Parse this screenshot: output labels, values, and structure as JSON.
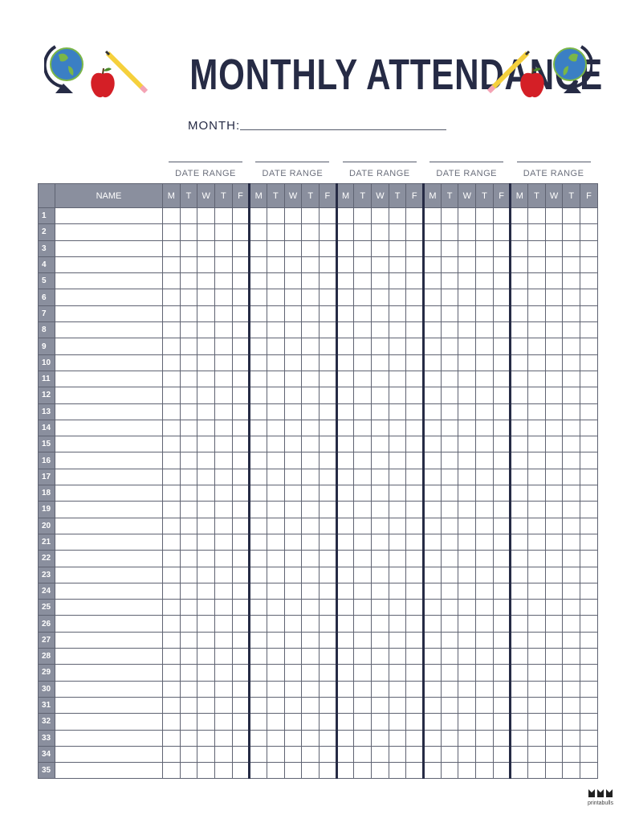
{
  "header": {
    "title": "MONTHLY ATTENDANCE",
    "month_label": "MONTH:"
  },
  "icons": {
    "left": [
      "globe-icon",
      "apple-icon",
      "pencil-icon"
    ],
    "right": [
      "pencil-icon",
      "apple-icon",
      "globe-icon"
    ]
  },
  "date_ranges": [
    "DATE RANGE",
    "DATE RANGE",
    "DATE RANGE",
    "DATE RANGE",
    "DATE RANGE"
  ],
  "table": {
    "name_header": "NAME",
    "days": [
      "M",
      "T",
      "W",
      "T",
      "F"
    ],
    "weeks": 5,
    "rows": [
      "1",
      "2",
      "3",
      "4",
      "5",
      "6",
      "7",
      "8",
      "9",
      "10",
      "11",
      "12",
      "13",
      "14",
      "15",
      "16",
      "17",
      "18",
      "19",
      "20",
      "21",
      "22",
      "23",
      "24",
      "25",
      "26",
      "27",
      "28",
      "29",
      "30",
      "31",
      "32",
      "33",
      "34",
      "35"
    ]
  },
  "footer": {
    "brand": "printabulls"
  },
  "colors": {
    "navy": "#262b45",
    "header_gray": "#8a8f9e",
    "apple_red": "#d41f26",
    "pencil_yellow": "#f5d03c",
    "globe_blue": "#3b7fc4",
    "globe_green": "#7ab648"
  }
}
